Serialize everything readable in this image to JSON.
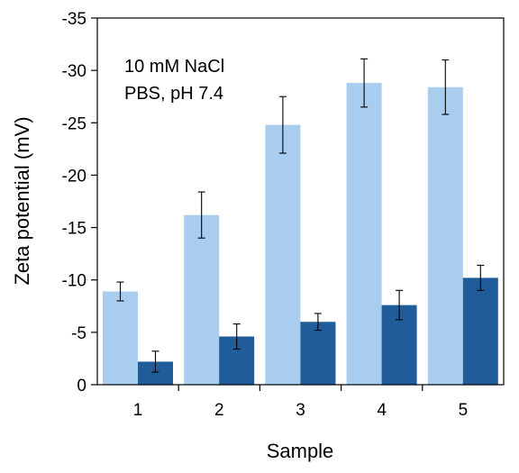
{
  "chart_data": {
    "type": "bar",
    "xlabel": "Sample",
    "ylabel": "Zeta potential (mV)",
    "categories": [
      "1",
      "2",
      "3",
      "4",
      "5"
    ],
    "ylim": [
      0,
      -35
    ],
    "yticks": [
      "0",
      "-5",
      "-10",
      "-15",
      "-20",
      "-25",
      "-30",
      "-35"
    ],
    "ytick_values": [
      0,
      -5,
      -10,
      -15,
      -20,
      -25,
      -30,
      -35
    ],
    "series": [
      {
        "name": "10 mM NaCl",
        "color": "#a8cdee",
        "values": [
          -8.9,
          -16.2,
          -24.8,
          -28.8,
          -28.4
        ],
        "errors": [
          0.9,
          2.2,
          2.7,
          2.3,
          2.6
        ]
      },
      {
        "name": "PBS, pH 7.4",
        "color": "#1f5c99",
        "values": [
          -2.2,
          -4.6,
          -6.0,
          -7.6,
          -10.2
        ],
        "errors": [
          1.0,
          1.2,
          0.8,
          1.4,
          1.2
        ]
      }
    ],
    "legend_position": "top-left",
    "grid": false
  }
}
